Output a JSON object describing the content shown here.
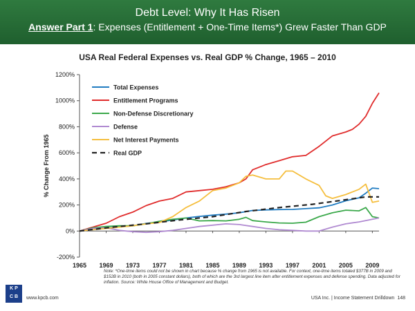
{
  "header": {
    "title": "Debt Level: Why It Has Risen",
    "subtitle_emph": "Answer Part 1",
    "subtitle_rest": ": Expenses (Entitlement + One-Time Items*) Grew Faster Than GDP"
  },
  "chart_data": {
    "type": "line",
    "title": "USA Real Federal Expenses vs. Real GDP % Change, 1965 – 2010",
    "ylabel": "% Change From 1965",
    "xlabel": "",
    "xlim": [
      1965,
      2010
    ],
    "ylim": [
      -200,
      1200
    ],
    "x_ticks": [
      "1965",
      "1969",
      "1973",
      "1977",
      "1981",
      "1985",
      "1989",
      "1993",
      "1997",
      "2001",
      "2005",
      "2009"
    ],
    "y_ticks": [
      "1200%",
      "1000%",
      "800%",
      "600%",
      "400%",
      "200%",
      "0%",
      "-200%"
    ],
    "y_tick_values": [
      1200,
      1000,
      800,
      600,
      400,
      200,
      0,
      -200
    ],
    "legend_position": "top-left",
    "grid": false,
    "series": [
      {
        "name": "Total Expenses",
        "color": "#1f7bc1",
        "dashed": false,
        "x": [
          1965,
          1967,
          1969,
          1971,
          1973,
          1975,
          1977,
          1979,
          1981,
          1983,
          1985,
          1987,
          1989,
          1991,
          1993,
          1995,
          1997,
          1999,
          2001,
          2003,
          2005,
          2007,
          2008,
          2009,
          2010
        ],
        "y": [
          0,
          10,
          22,
          32,
          40,
          58,
          70,
          85,
          100,
          112,
          122,
          130,
          140,
          158,
          162,
          165,
          166,
          172,
          178,
          200,
          232,
          255,
          290,
          330,
          325
        ]
      },
      {
        "name": "Entitlement Programs",
        "color": "#e02b2b",
        "dashed": false,
        "x": [
          1965,
          1967,
          1969,
          1971,
          1973,
          1975,
          1977,
          1979,
          1981,
          1983,
          1985,
          1987,
          1989,
          1990,
          1991,
          1993,
          1995,
          1997,
          1999,
          2001,
          2003,
          2005,
          2006,
          2007,
          2008,
          2009,
          2010
        ],
        "y": [
          0,
          30,
          60,
          110,
          145,
          195,
          230,
          250,
          300,
          310,
          320,
          340,
          370,
          400,
          470,
          510,
          540,
          570,
          580,
          650,
          730,
          760,
          780,
          820,
          880,
          980,
          1060
        ]
      },
      {
        "name": "Non-Defense Discretionary",
        "color": "#3aa84a",
        "dashed": false,
        "x": [
          1965,
          1967,
          1969,
          1971,
          1973,
          1975,
          1977,
          1979,
          1981,
          1983,
          1985,
          1987,
          1989,
          1990,
          1991,
          1993,
          1995,
          1997,
          1999,
          2001,
          2003,
          2005,
          2007,
          2008,
          2009,
          2010
        ],
        "y": [
          0,
          25,
          35,
          40,
          40,
          55,
          75,
          90,
          100,
          78,
          80,
          78,
          90,
          105,
          80,
          70,
          62,
          60,
          68,
          110,
          140,
          160,
          155,
          180,
          110,
          100
        ]
      },
      {
        "name": "Defense",
        "color": "#b08ad1",
        "dashed": false,
        "x": [
          1965,
          1967,
          1969,
          1971,
          1973,
          1975,
          1977,
          1979,
          1981,
          1983,
          1985,
          1987,
          1989,
          1991,
          1993,
          1995,
          1997,
          1999,
          2001,
          2003,
          2005,
          2007,
          2009,
          2010
        ],
        "y": [
          0,
          20,
          25,
          5,
          -5,
          -10,
          -5,
          5,
          20,
          35,
          45,
          55,
          50,
          35,
          20,
          10,
          5,
          0,
          0,
          30,
          55,
          70,
          90,
          100
        ]
      },
      {
        "name": "Net Interest Payments",
        "color": "#f5be3d",
        "dashed": false,
        "x": [
          1965,
          1967,
          1969,
          1971,
          1973,
          1975,
          1977,
          1979,
          1981,
          1983,
          1985,
          1987,
          1989,
          1990,
          1991,
          1993,
          1995,
          1996,
          1997,
          1999,
          2001,
          2002,
          2003,
          2005,
          2007,
          2008,
          2009,
          2010
        ],
        "y": [
          0,
          10,
          20,
          30,
          40,
          55,
          65,
          110,
          180,
          230,
          310,
          330,
          370,
          420,
          430,
          400,
          400,
          460,
          460,
          400,
          350,
          270,
          250,
          280,
          320,
          360,
          220,
          230
        ]
      },
      {
        "name": "Real GDP",
        "color": "#222222",
        "dashed": true,
        "x": [
          1965,
          1970,
          1975,
          1980,
          1985,
          1990,
          1995,
          2000,
          2005,
          2008,
          2010
        ],
        "y": [
          0,
          30,
          55,
          85,
          110,
          150,
          180,
          205,
          240,
          262,
          262
        ]
      }
    ]
  },
  "note": {
    "text": "Note: *One-time items could not be shown in chart because % change from 1965 is not available. For context, one-time items totaled $377B in 2009 and $152B in 2010 (both in 2005 constant dollars), both of which are the 3rd largest line item after entitlement expenses and defense spending. Data adjusted for inflation. Source: White House Office of Management and Budget."
  },
  "footer": {
    "logo_line1": "K P",
    "logo_line2": "C B",
    "url": "www.kpcb.com",
    "right_text": "USA Inc. | Income Statement Drilldown",
    "page": "148"
  },
  "colors": {
    "header_bg": "#2a6e38",
    "logo_bg": "#1c3f8a"
  }
}
